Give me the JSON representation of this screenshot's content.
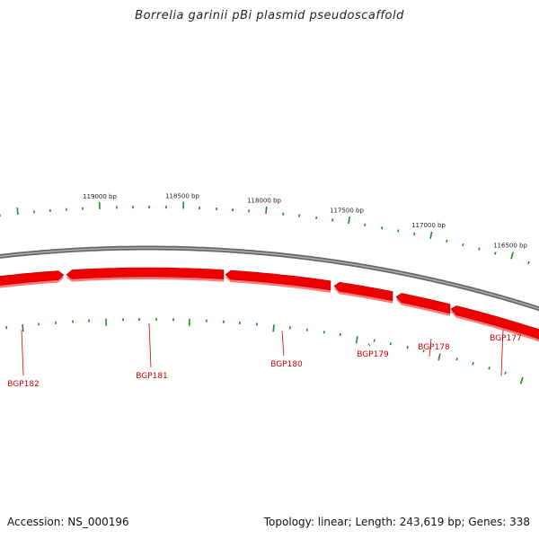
{
  "title": "Borrelia garinii pBi plasmid pseudoscaffold",
  "footer": {
    "accession": "Accession: NS_000196",
    "summary": "Topology: linear; Length: 243,619 bp; Genes: 338"
  },
  "colors": {
    "backbone": "#888888",
    "gene_fill": "#ee0000",
    "gene_shadow": "#ff7777",
    "gene_label": "#cc0000",
    "ticks": "#228822"
  },
  "position_labels": [
    "119000 bp",
    "118500 bp",
    "118000 bp",
    "117500 bp",
    "117000 bp",
    "116500 bp"
  ],
  "genes": [
    {
      "name": "BGP182",
      "strand": "+"
    },
    {
      "name": "BGP181",
      "strand": "-"
    },
    {
      "name": "BGP180",
      "strand": "-"
    },
    {
      "name": "BGP179",
      "strand": "-"
    },
    {
      "name": "BGP178",
      "strand": "-"
    },
    {
      "name": "BGP177",
      "strand": "-"
    }
  ]
}
